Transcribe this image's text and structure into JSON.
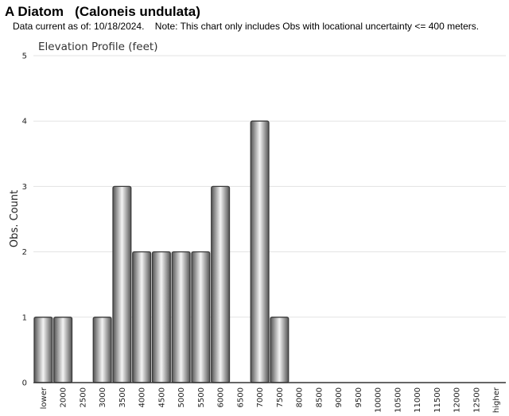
{
  "header": {
    "title": "A Diatom   (Caloneis undulata)",
    "subtitle": "Data current as of: 10/18/2024.    Note: This chart only includes Obs with locational uncertainty <= 400 meters."
  },
  "chart_data": {
    "type": "bar",
    "title": "Elevation Profile (feet)",
    "xlabel": "",
    "ylabel": "Obs. Count",
    "ylim": [
      0,
      5
    ],
    "yticks": [
      0,
      1,
      2,
      3,
      4,
      5
    ],
    "grid": true,
    "categories": [
      "lower",
      "2000",
      "2500",
      "3000",
      "3500",
      "4000",
      "4500",
      "5000",
      "5500",
      "6000",
      "6500",
      "7000",
      "7500",
      "8000",
      "8500",
      "9000",
      "9500",
      "10000",
      "10500",
      "11000",
      "11500",
      "12000",
      "12500",
      "higher"
    ],
    "values": [
      1,
      1,
      0,
      1,
      3,
      2,
      2,
      2,
      2,
      3,
      0,
      4,
      1,
      0,
      0,
      0,
      0,
      0,
      0,
      0,
      0,
      0,
      0,
      0
    ],
    "colors": {
      "bar_dark": "#555555",
      "bar_light": "#f4f4f4",
      "bar_stroke": "#3c3c3c",
      "grid": "#e3e3e3",
      "axis": "#333333"
    }
  }
}
